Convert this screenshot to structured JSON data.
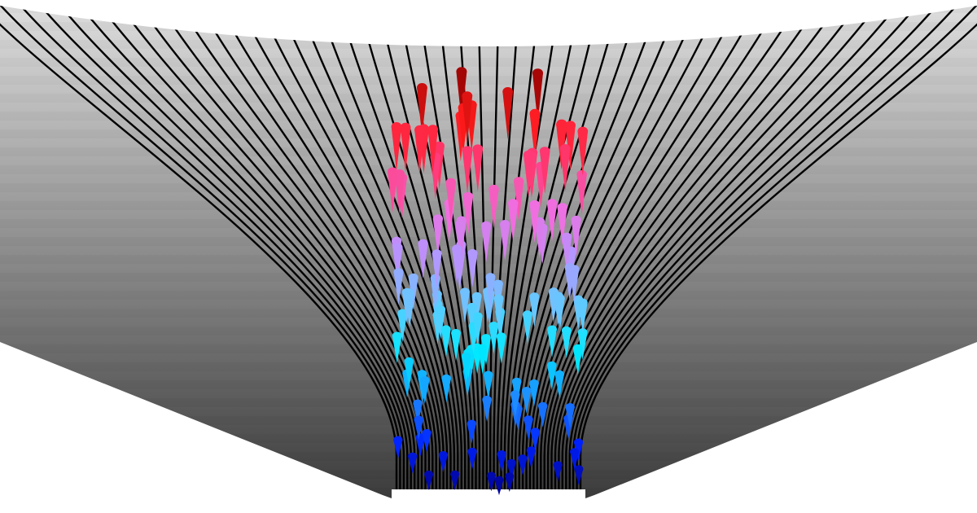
{
  "scene": {
    "description_visible_text": "",
    "colors": {
      "background": "#ffffff",
      "funnel_top": "#dddddd",
      "funnel_bottom": "#3c3c3c",
      "flow_lines": "#000000",
      "marker_gradient_top_to_bottom": [
        "#8b0000",
        "#ff1a1a",
        "#ff3b7a",
        "#f06ee0",
        "#b496ff",
        "#66c8ff",
        "#00eaff",
        "#1e8cff",
        "#0022ff",
        "#00008b"
      ]
    },
    "flow_line_count": 52,
    "marker_count": 150,
    "marker_shape": "cone-icon"
  }
}
